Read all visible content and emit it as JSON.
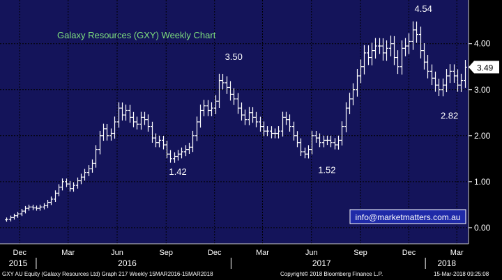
{
  "colors": {
    "plot_background": "#14145a",
    "grid": "#000000",
    "price_bars": "#ffffff",
    "title_text": "#7fe07f",
    "axis_background": "#000000",
    "axis_text": "#ffffff",
    "watermark_background": "#1f2aa8"
  },
  "chart_data": {
    "type": "line",
    "title": "Galaxy Resources (GXY) Weekly Chart",
    "series_style": "weekly OHLC bars",
    "y_ticks": [
      "0.00",
      "1.00",
      "2.00",
      "3.00",
      "4.00"
    ],
    "ylim": [
      -0.35,
      4.95
    ],
    "x_month_labels": [
      "Dec",
      "Mar",
      "Jun",
      "Sep",
      "Dec",
      "Mar",
      "Jun",
      "Sep",
      "Dec",
      "Mar"
    ],
    "x_year_labels": [
      "2015",
      "2016",
      "2017",
      "2018"
    ],
    "grid": true,
    "x": [
      "2015-11-06",
      "2015-11-13",
      "2015-11-20",
      "2015-11-27",
      "2015-12-04",
      "2015-12-11",
      "2015-12-18",
      "2015-12-25",
      "2016-01-01",
      "2016-01-08",
      "2016-01-15",
      "2016-01-22",
      "2016-01-29",
      "2016-02-05",
      "2016-02-12",
      "2016-02-19",
      "2016-02-26",
      "2016-03-04",
      "2016-03-11",
      "2016-03-18",
      "2016-03-25",
      "2016-04-01",
      "2016-04-08",
      "2016-04-15",
      "2016-04-22",
      "2016-04-29",
      "2016-05-06",
      "2016-05-13",
      "2016-05-20",
      "2016-05-27",
      "2016-06-03",
      "2016-06-10",
      "2016-06-17",
      "2016-06-24",
      "2016-07-01",
      "2016-07-08",
      "2016-07-15",
      "2016-07-22",
      "2016-07-29",
      "2016-08-05",
      "2016-08-12",
      "2016-08-19",
      "2016-08-26",
      "2016-09-02",
      "2016-09-09",
      "2016-09-16",
      "2016-09-23",
      "2016-09-30",
      "2016-10-07",
      "2016-10-14",
      "2016-10-21",
      "2016-10-28",
      "2016-11-04",
      "2016-11-11",
      "2016-11-18",
      "2016-11-25",
      "2016-12-02",
      "2016-12-09",
      "2016-12-16",
      "2016-12-23",
      "2016-12-30",
      "2017-01-06",
      "2017-01-13",
      "2017-01-20",
      "2017-01-27",
      "2017-02-03",
      "2017-02-10",
      "2017-02-17",
      "2017-02-24",
      "2017-03-03",
      "2017-03-10",
      "2017-03-17",
      "2017-03-24",
      "2017-03-31",
      "2017-04-07",
      "2017-04-14",
      "2017-04-21",
      "2017-04-28",
      "2017-05-05",
      "2017-05-12",
      "2017-05-19",
      "2017-05-26",
      "2017-06-02",
      "2017-06-09",
      "2017-06-16",
      "2017-06-23",
      "2017-06-30",
      "2017-07-07",
      "2017-07-14",
      "2017-07-21",
      "2017-07-28",
      "2017-08-04",
      "2017-08-11",
      "2017-08-18",
      "2017-08-25",
      "2017-09-01",
      "2017-09-08",
      "2017-09-15",
      "2017-09-22",
      "2017-09-29",
      "2017-10-06",
      "2017-10-13",
      "2017-10-20",
      "2017-10-27",
      "2017-11-03",
      "2017-11-10",
      "2017-11-17",
      "2017-11-24",
      "2017-12-01",
      "2017-12-08",
      "2017-12-15",
      "2017-12-22",
      "2017-12-29",
      "2018-01-05",
      "2018-01-12",
      "2018-01-19",
      "2018-01-26",
      "2018-02-02",
      "2018-02-09",
      "2018-02-16",
      "2018-02-23",
      "2018-03-02",
      "2018-03-09",
      "2018-03-16"
    ],
    "close": [
      0.18,
      0.22,
      0.26,
      0.3,
      0.36,
      0.42,
      0.45,
      0.43,
      0.42,
      0.45,
      0.48,
      0.55,
      0.62,
      0.75,
      0.88,
      1.0,
      0.95,
      0.85,
      0.92,
      1.02,
      1.1,
      1.2,
      1.28,
      1.4,
      1.7,
      2.0,
      2.15,
      2.0,
      2.05,
      2.3,
      2.6,
      2.45,
      2.55,
      2.4,
      2.3,
      2.25,
      2.4,
      2.35,
      2.2,
      1.95,
      1.85,
      1.9,
      1.8,
      1.6,
      1.5,
      1.55,
      1.6,
      1.65,
      1.7,
      1.75,
      2.0,
      2.3,
      2.55,
      2.65,
      2.55,
      2.6,
      2.75,
      3.2,
      3.15,
      3.05,
      2.9,
      2.8,
      2.6,
      2.45,
      2.35,
      2.5,
      2.4,
      2.3,
      2.2,
      2.1,
      2.1,
      2.05,
      2.05,
      2.1,
      2.4,
      2.35,
      2.2,
      2.0,
      1.85,
      1.65,
      1.6,
      1.7,
      2.0,
      1.95,
      1.85,
      1.9,
      1.9,
      1.85,
      1.8,
      1.9,
      2.2,
      2.6,
      2.8,
      3.0,
      3.3,
      3.5,
      3.8,
      3.7,
      3.85,
      3.95,
      3.95,
      3.8,
      3.9,
      4.0,
      3.7,
      3.5,
      3.9,
      3.95,
      4.05,
      4.3,
      4.2,
      3.85,
      3.6,
      3.4,
      3.25,
      3.1,
      3.0,
      3.1,
      3.3,
      3.4,
      3.3,
      3.1,
      3.2,
      3.49
    ],
    "annotations": [
      {
        "text": "1.42",
        "x": "2016-09-23",
        "y": 1.42
      },
      {
        "text": "3.50",
        "x": "2017-01-06",
        "y": 3.5
      },
      {
        "text": "1.52",
        "x": "2017-06-30",
        "y": 1.52
      },
      {
        "text": "4.54",
        "x": "2018-01-05",
        "y": 4.54
      },
      {
        "text": "2.82",
        "x": "2018-02-23",
        "y": 2.82
      }
    ],
    "last_price_label": "3.49",
    "last_price": 3.49,
    "watermark": "info@marketmatters.com.au"
  },
  "footer": {
    "left": "GXY AU Equity (Galaxy Resources Ltd) Graph 217  Weekly 15MAR2016-15MAR2018",
    "center": "Copyright© 2018 Bloomberg Finance L.P.",
    "right": "15-Mar-2018 09:25:08"
  }
}
